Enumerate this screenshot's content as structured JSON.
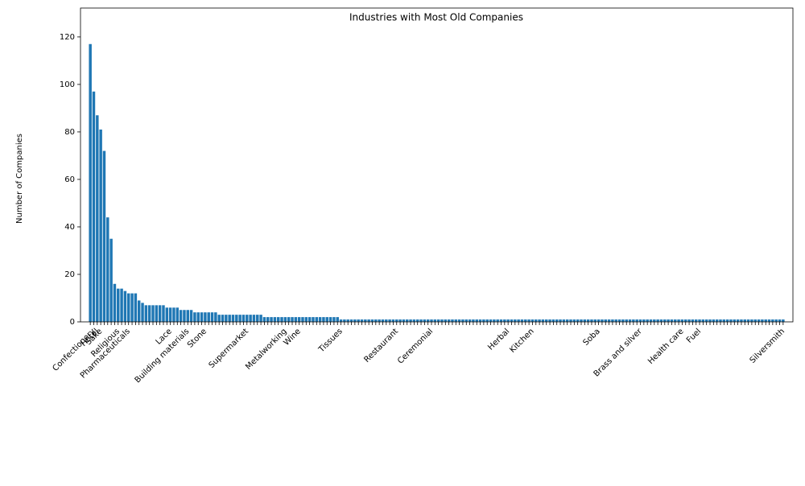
{
  "chart_data": {
    "type": "bar",
    "title": "Industries with Most Old Companies",
    "y_label": "Number of Companies",
    "categories": [
      null,
      "Confectionery",
      "Hotel",
      "Sake",
      null,
      null,
      null,
      null,
      "Religious",
      null,
      null,
      "Pharmaceuticals",
      null,
      null,
      null,
      null,
      null,
      null,
      null,
      null,
      null,
      null,
      null,
      "Lace",
      null,
      null,
      null,
      null,
      "Building materials",
      null,
      null,
      null,
      null,
      "Stone",
      null,
      null,
      null,
      null,
      null,
      null,
      null,
      null,
      null,
      null,
      null,
      "Supermarket",
      null,
      null,
      null,
      null,
      null,
      null,
      null,
      null,
      null,
      null,
      "Metalworking",
      null,
      null,
      null,
      "Wine",
      null,
      null,
      null,
      null,
      null,
      null,
      null,
      null,
      null,
      null,
      null,
      "Tissues",
      null,
      null,
      null,
      null,
      null,
      null,
      null,
      null,
      null,
      null,
      null,
      null,
      null,
      null,
      null,
      "Restaurant",
      null,
      null,
      null,
      null,
      null,
      null,
      null,
      null,
      null,
      "Ceremonial",
      null,
      null,
      null,
      null,
      null,
      null,
      null,
      null,
      null,
      null,
      null,
      null,
      null,
      null,
      null,
      null,
      null,
      null,
      null,
      null,
      null,
      "Herbal",
      null,
      null,
      null,
      null,
      null,
      null,
      "Kitchen",
      null,
      null,
      null,
      null,
      null,
      null,
      null,
      null,
      null,
      null,
      null,
      null,
      null,
      null,
      null,
      null,
      null,
      null,
      "Soba",
      null,
      null,
      null,
      null,
      null,
      null,
      null,
      null,
      null,
      null,
      null,
      "Brass and silver",
      null,
      null,
      null,
      null,
      null,
      null,
      null,
      null,
      null,
      null,
      null,
      "Health care",
      null,
      null,
      null,
      null,
      "Fuel",
      null,
      null,
      null,
      null,
      null,
      null,
      null,
      null,
      null,
      null,
      null,
      null,
      null,
      null,
      null,
      null,
      null,
      null,
      null,
      null,
      null,
      null,
      null,
      "Silversmith"
    ],
    "values": [
      117,
      97,
      87,
      81,
      72,
      44,
      35,
      16,
      14,
      14,
      13,
      12,
      12,
      12,
      9,
      8,
      7,
      7,
      7,
      7,
      7,
      7,
      6,
      6,
      6,
      6,
      5,
      5,
      5,
      5,
      4,
      4,
      4,
      4,
      4,
      4,
      4,
      3,
      3,
      3,
      3,
      3,
      3,
      3,
      3,
      3,
      3,
      3,
      3,
      3,
      2,
      2,
      2,
      2,
      2,
      2,
      2,
      2,
      2,
      2,
      2,
      2,
      2,
      2,
      2,
      2,
      2,
      2,
      2,
      2,
      2,
      2,
      1,
      1,
      1,
      1,
      1,
      1,
      1,
      1,
      1,
      1,
      1,
      1,
      1,
      1,
      1,
      1,
      1,
      1,
      1,
      1,
      1,
      1,
      1,
      1,
      1,
      1,
      1,
      1,
      1,
      1,
      1,
      1,
      1,
      1,
      1,
      1,
      1,
      1,
      1,
      1,
      1,
      1,
      1,
      1,
      1,
      1,
      1,
      1,
      1,
      1,
      1,
      1,
      1,
      1,
      1,
      1,
      1,
      1,
      1,
      1,
      1,
      1,
      1,
      1,
      1,
      1,
      1,
      1,
      1,
      1,
      1,
      1,
      1,
      1,
      1,
      1,
      1,
      1,
      1,
      1,
      1,
      1,
      1,
      1,
      1,
      1,
      1,
      1,
      1,
      1,
      1,
      1,
      1,
      1,
      1,
      1,
      1,
      1,
      1,
      1,
      1,
      1,
      1,
      1,
      1,
      1,
      1,
      1,
      1,
      1,
      1,
      1,
      1,
      1,
      1,
      1,
      1,
      1,
      1,
      1,
      1,
      1,
      1,
      1,
      1,
      1,
      1,
      1
    ],
    "color": "#1f77b4",
    "ylim": [
      0,
      122
    ],
    "yticks": [
      0,
      20,
      40,
      60,
      80,
      100,
      120
    ],
    "grid": false
  }
}
